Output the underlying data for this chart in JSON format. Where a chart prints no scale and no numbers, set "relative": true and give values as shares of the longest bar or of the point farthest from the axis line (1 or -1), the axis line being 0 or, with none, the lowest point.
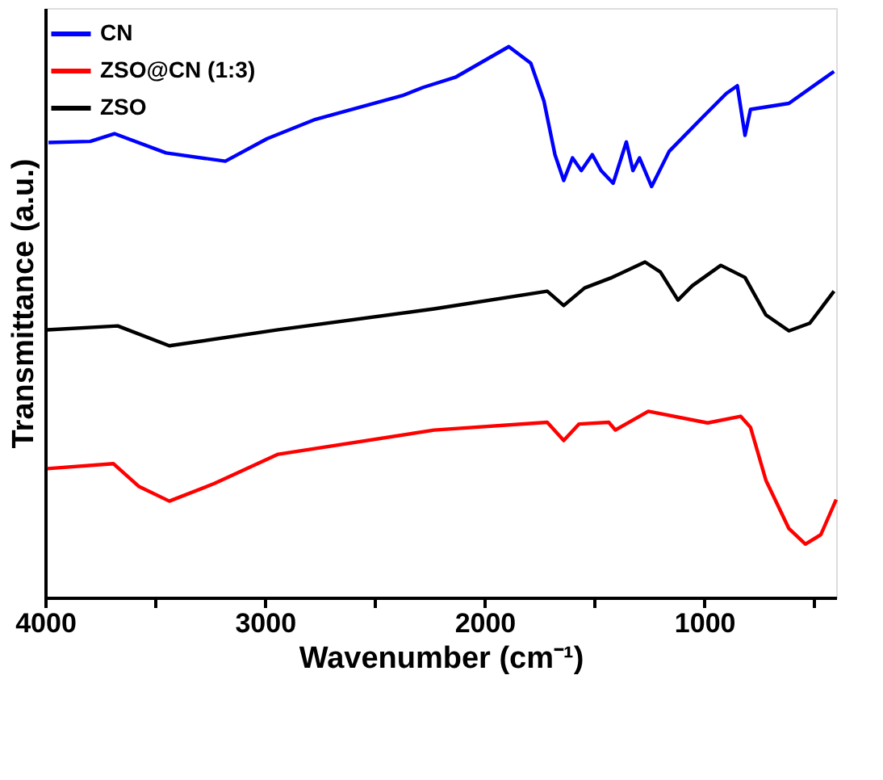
{
  "chart_data": {
    "type": "line",
    "relative": true,
    "xlabel": "Wavenumber (cm⁻¹)",
    "ylabel": "Transmittance (a.u.)",
    "xlim": [
      4000,
      400
    ],
    "xticks": [
      4000,
      {
        "value": 3500,
        "label": null
      },
      3000,
      {
        "value": 2500,
        "label": null
      },
      2000,
      {
        "value": 1500,
        "label": null
      },
      1000,
      {
        "value": 500,
        "label": null
      }
    ],
    "legend": "top left",
    "grid": false,
    "marker": "none",
    "line_style": "solid",
    "tick_labels": "x",
    "series": [
      {
        "name": "CN",
        "color": "#0000ff",
        "x": [
          3985,
          3795,
          3685,
          3450,
          3180,
          2990,
          2770,
          2375,
          2280,
          2130,
          1890,
          1790,
          1730,
          1680,
          1640,
          1600,
          1560,
          1510,
          1470,
          1415,
          1355,
          1325,
          1295,
          1240,
          1160,
          1010,
          900,
          850,
          815,
          790,
          615,
          410
        ],
        "values": [
          0.826,
          0.828,
          0.842,
          0.807,
          0.792,
          0.833,
          0.868,
          0.911,
          0.926,
          0.945,
          1.0,
          0.97,
          0.901,
          0.804,
          0.757,
          0.798,
          0.775,
          0.804,
          0.775,
          0.752,
          0.827,
          0.775,
          0.798,
          0.746,
          0.81,
          0.871,
          0.915,
          0.929,
          0.839,
          0.886,
          0.897,
          0.955
        ]
      },
      {
        "name": "ZSO@CN (1:3)",
        "color": "#ff0000",
        "x": [
          3990,
          3690,
          3575,
          3435,
          3230,
          2940,
          2230,
          1715,
          1640,
          1570,
          1435,
          1405,
          1255,
          985,
          835,
          790,
          720,
          615,
          540,
          470,
          400
        ],
        "values": [
          0.234,
          0.243,
          0.202,
          0.175,
          0.207,
          0.26,
          0.304,
          0.318,
          0.285,
          0.315,
          0.318,
          0.304,
          0.338,
          0.317,
          0.329,
          0.309,
          0.213,
          0.125,
          0.097,
          0.114,
          0.178
        ]
      },
      {
        "name": "ZSO",
        "color": "#000000",
        "x": [
          3990,
          3670,
          3435,
          2940,
          2230,
          1715,
          1640,
          1545,
          1420,
          1270,
          1200,
          1120,
          1055,
          925,
          815,
          720,
          615,
          520,
          410
        ],
        "values": [
          0.486,
          0.493,
          0.457,
          0.486,
          0.524,
          0.556,
          0.53,
          0.562,
          0.581,
          0.609,
          0.591,
          0.54,
          0.566,
          0.603,
          0.581,
          0.513,
          0.484,
          0.498,
          0.556
        ]
      }
    ]
  }
}
